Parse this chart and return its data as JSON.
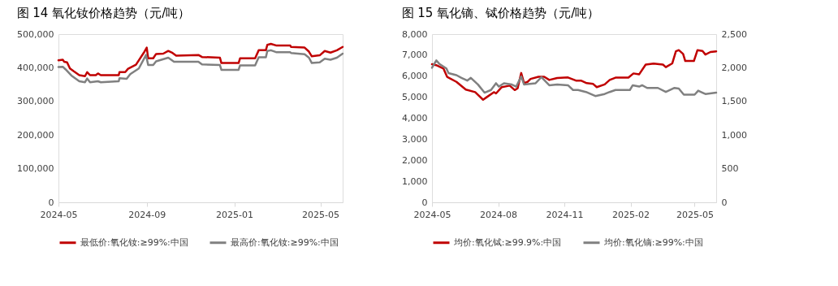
{
  "chart_data": [
    {
      "type": "line",
      "title": "图 14 氧化钕价格趋势（元/吨）",
      "xlim": [
        "2024-05-01",
        "2025-06-01"
      ],
      "xticks": [
        {
          "value": "2024-05-01",
          "label": "2024-05"
        },
        {
          "value": "2024-09-01",
          "label": "2024-09"
        },
        {
          "value": "2025-01-01",
          "label": "2025-01"
        },
        {
          "value": "2025-05-01",
          "label": "2025-05"
        }
      ],
      "ylim": [
        0,
        500000
      ],
      "yticks": [
        {
          "value": 0,
          "label": "0"
        },
        {
          "value": 100000,
          "label": "100,000"
        },
        {
          "value": 200000,
          "label": "200,000"
        },
        {
          "value": 300000,
          "label": "300,000"
        },
        {
          "value": 400000,
          "label": "400,000"
        },
        {
          "value": 500000,
          "label": "500,000"
        }
      ],
      "grid": false,
      "legend": "bottom",
      "line_style": "solid",
      "marker": "none",
      "series": [
        {
          "name": "最低价:氧化钕:≥99%:中国",
          "color": "#c00000",
          "x": [
            "2024-05-01",
            "2024-05-07",
            "2024-05-09",
            "2024-05-13",
            "2024-05-17",
            "2024-05-22",
            "2024-05-30",
            "2024-06-07",
            "2024-06-10",
            "2024-06-14",
            "2024-06-22",
            "2024-06-25",
            "2024-06-29",
            "2024-07-24",
            "2024-07-25",
            "2024-08-02",
            "2024-08-06",
            "2024-08-17",
            "2024-08-28",
            "2024-09-01",
            "2024-09-03",
            "2024-09-10",
            "2024-09-14",
            "2024-09-24",
            "2024-10-01",
            "2024-10-07",
            "2024-10-12",
            "2024-11-12",
            "2024-11-17",
            "2024-12-12",
            "2024-12-14",
            "2025-01-07",
            "2025-01-09",
            "2025-01-30",
            "2025-02-04",
            "2025-02-14",
            "2025-02-16",
            "2025-02-21",
            "2025-03-01",
            "2025-03-20",
            "2025-03-21",
            "2025-04-09",
            "2025-04-15",
            "2025-04-19",
            "2025-04-30",
            "2025-05-07",
            "2025-05-15",
            "2025-05-24",
            "2025-06-01"
          ],
          "values": [
            422000,
            424000,
            418000,
            416000,
            398000,
            390000,
            378000,
            375000,
            387000,
            378000,
            378000,
            383000,
            378000,
            378000,
            387000,
            387000,
            397000,
            409000,
            445000,
            460000,
            428000,
            428000,
            441000,
            442000,
            450000,
            444000,
            436000,
            438000,
            432000,
            430000,
            414000,
            414000,
            428000,
            428000,
            452000,
            452000,
            468000,
            471000,
            466000,
            466000,
            462000,
            460000,
            448000,
            434000,
            437000,
            450000,
            445000,
            452000,
            462000
          ]
        },
        {
          "name": "最高价:氧化钕:≥99%:中国",
          "color": "#808080",
          "x": [
            "2024-05-01",
            "2024-05-07",
            "2024-05-11",
            "2024-05-19",
            "2024-05-30",
            "2024-06-07",
            "2024-06-10",
            "2024-06-14",
            "2024-06-25",
            "2024-06-29",
            "2024-07-24",
            "2024-07-25",
            "2024-08-04",
            "2024-08-09",
            "2024-08-21",
            "2024-08-31",
            "2024-09-03",
            "2024-09-10",
            "2024-09-14",
            "2024-10-01",
            "2024-10-09",
            "2024-11-12",
            "2024-11-17",
            "2024-12-12",
            "2024-12-14",
            "2025-01-07",
            "2025-01-09",
            "2025-01-30",
            "2025-02-04",
            "2025-02-14",
            "2025-02-16",
            "2025-02-21",
            "2025-03-01",
            "2025-03-20",
            "2025-03-21",
            "2025-04-09",
            "2025-04-15",
            "2025-04-19",
            "2025-04-30",
            "2025-05-07",
            "2025-05-15",
            "2025-05-24",
            "2025-06-01"
          ],
          "values": [
            402000,
            403000,
            395000,
            377000,
            360000,
            357000,
            368000,
            357000,
            360000,
            357000,
            360000,
            369000,
            367000,
            381000,
            398000,
            438000,
            408000,
            408000,
            419000,
            430000,
            418000,
            418000,
            410000,
            408000,
            394000,
            394000,
            407000,
            407000,
            431000,
            431000,
            450000,
            452000,
            446000,
            446000,
            444000,
            440000,
            430000,
            414000,
            416000,
            427000,
            424000,
            430000,
            442000
          ]
        }
      ]
    },
    {
      "type": "line",
      "title": "图 15 氧化镝、铽价格趋势（元/吨）",
      "xlim": [
        "2024-05-01",
        "2025-05-31"
      ],
      "xticks": [
        {
          "value": "2024-05-01",
          "label": "2024-05"
        },
        {
          "value": "2024-08-01",
          "label": "2024-08"
        },
        {
          "value": "2024-11-01",
          "label": "2024-11"
        },
        {
          "value": "2025-02-01",
          "label": "2025-02"
        },
        {
          "value": "2025-05-01",
          "label": "2025-05"
        }
      ],
      "ylim": [
        0,
        8000
      ],
      "yticks": [
        {
          "value": 0,
          "label": "0"
        },
        {
          "value": 1000,
          "label": "1,000"
        },
        {
          "value": 2000,
          "label": "2,000"
        },
        {
          "value": 3000,
          "label": "3,000"
        },
        {
          "value": 4000,
          "label": "4,000"
        },
        {
          "value": 5000,
          "label": "5,000"
        },
        {
          "value": 6000,
          "label": "6,000"
        },
        {
          "value": 7000,
          "label": "7,000"
        },
        {
          "value": 8000,
          "label": "8,000"
        }
      ],
      "y2lim": [
        0,
        2500
      ],
      "y2ticks": [
        {
          "value": 0,
          "label": "0"
        },
        {
          "value": 500,
          "label": "500"
        },
        {
          "value": 1000,
          "label": "1,000"
        },
        {
          "value": 1500,
          "label": "1,500"
        },
        {
          "value": 2000,
          "label": "2,000"
        },
        {
          "value": 2500,
          "label": "2,500"
        }
      ],
      "grid": false,
      "legend": "bottom",
      "line_style": "solid",
      "marker": "none",
      "series": [
        {
          "name": "均价:氧化铽:≥99.9%:中国",
          "color": "#c00000",
          "axis": "y",
          "x": [
            "2024-05-01",
            "2024-05-08",
            "2024-05-17",
            "2024-05-22",
            "2024-06-04",
            "2024-06-17",
            "2024-06-30",
            "2024-07-11",
            "2024-07-16",
            "2024-07-26",
            "2024-07-29",
            "2024-08-06",
            "2024-08-17",
            "2024-08-24",
            "2024-08-28",
            "2024-09-02",
            "2024-09-06",
            "2024-09-11",
            "2024-09-15",
            "2024-09-26",
            "2024-10-04",
            "2024-10-11",
            "2024-10-22",
            "2024-11-06",
            "2024-11-17",
            "2024-11-24",
            "2024-12-02",
            "2024-12-11",
            "2024-12-16",
            "2024-12-27",
            "2025-01-03",
            "2025-01-11",
            "2025-01-29",
            "2025-02-05",
            "2025-02-13",
            "2025-02-22",
            "2025-03-05",
            "2025-03-18",
            "2025-03-22",
            "2025-03-31",
            "2025-04-05",
            "2025-04-09",
            "2025-04-15",
            "2025-04-18",
            "2025-04-30",
            "2025-05-05",
            "2025-05-12",
            "2025-05-16",
            "2025-05-23",
            "2025-05-31"
          ],
          "values": [
            6570,
            6510,
            6360,
            5970,
            5730,
            5360,
            5240,
            4880,
            5000,
            5240,
            5180,
            5480,
            5550,
            5340,
            5420,
            6150,
            5670,
            5730,
            5870,
            5970,
            5970,
            5820,
            5910,
            5940,
            5790,
            5790,
            5670,
            5630,
            5480,
            5610,
            5820,
            5930,
            5930,
            6130,
            6090,
            6550,
            6600,
            6550,
            6430,
            6610,
            7180,
            7240,
            7060,
            6720,
            6720,
            7240,
            7200,
            7030,
            7150,
            7180
          ]
        },
        {
          "name": "均价:氧化镝:≥99%:中国",
          "color": "#808080",
          "axis": "y2",
          "x": [
            "2024-05-01",
            "2024-05-07",
            "2024-05-11",
            "2024-05-21",
            "2024-05-24",
            "2024-06-04",
            "2024-06-11",
            "2024-06-19",
            "2024-06-24",
            "2024-07-04",
            "2024-07-13",
            "2024-07-22",
            "2024-07-29",
            "2024-08-02",
            "2024-08-09",
            "2024-08-20",
            "2024-08-26",
            "2024-09-02",
            "2024-09-06",
            "2024-09-22",
            "2024-09-30",
            "2024-10-11",
            "2024-10-22",
            "2024-11-06",
            "2024-11-13",
            "2024-11-20",
            "2024-12-01",
            "2024-12-14",
            "2024-12-27",
            "2025-01-03",
            "2025-01-11",
            "2025-01-31",
            "2025-02-04",
            "2025-02-13",
            "2025-02-17",
            "2025-02-24",
            "2025-03-11",
            "2025-03-22",
            "2025-04-03",
            "2025-04-09",
            "2025-04-16",
            "2025-05-01",
            "2025-05-06",
            "2025-05-12",
            "2025-05-16",
            "2025-05-31"
          ],
          "values": [
            2000,
            2110,
            2060,
            1990,
            1920,
            1890,
            1850,
            1810,
            1850,
            1750,
            1630,
            1670,
            1770,
            1720,
            1770,
            1750,
            1720,
            1870,
            1750,
            1770,
            1860,
            1740,
            1750,
            1740,
            1670,
            1670,
            1640,
            1580,
            1610,
            1640,
            1670,
            1670,
            1740,
            1720,
            1740,
            1700,
            1700,
            1640,
            1700,
            1690,
            1600,
            1600,
            1660,
            1630,
            1610,
            1630
          ]
        }
      ]
    }
  ]
}
